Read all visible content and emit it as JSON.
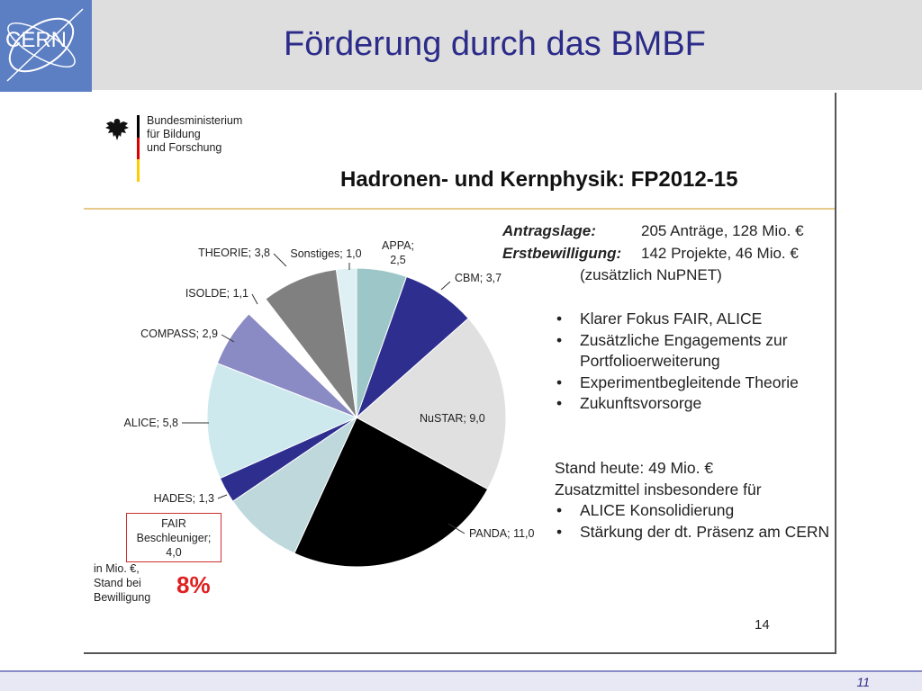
{
  "slide": {
    "title": "Förderung durch das BMBF",
    "page_number": "11"
  },
  "logo": {
    "text": "CERN"
  },
  "ministry": {
    "lines": [
      "Bundesministerium",
      "für Bildung",
      "und Forschung"
    ],
    "flag_colors": [
      "#000000",
      "#dd0000",
      "#ffcc00"
    ]
  },
  "info": {
    "antragslage_label": "Antragslage:",
    "antragslage_value": "205 Anträge, 128 Mio. €",
    "erstbewilligung_label": "Erstbewilligung:",
    "erstbewilligung_value": "142 Projekte, 46 Mio. €",
    "zusatz": "(zusätzlich NuPNET)"
  },
  "bullets": [
    "Klarer Fokus FAIR, ALICE",
    "Zusätzliche Engagements zur Portfolioerweiterung",
    "Experimentbegleitende Theorie",
    "Zukunftsvorsorge"
  ],
  "status": {
    "line1": "Stand heute: 49 Mio. €",
    "line2": "Zusatzmittel insbesondere für",
    "items": [
      "ALICE Konsolidierung",
      "Stärkung der dt. Präsenz am CERN"
    ]
  },
  "footnote": [
    "in Mio. €,",
    "Stand bei",
    "Bewilligung"
  ],
  "highlight_percent": "8%",
  "inner_slide_number": "14",
  "chart_data": {
    "type": "pie",
    "title": "Hadronen- und Kernphysik: FP2012-15",
    "unit": "Mio. €",
    "slices": [
      {
        "label": "APPA; 2,5",
        "value": 2.5,
        "color": "#9dc6c8"
      },
      {
        "label": "CBM; 3,7",
        "value": 3.7,
        "color": "#2e2e8f"
      },
      {
        "label": "NuSTAR; 9,0",
        "value": 9.0,
        "color": "#e0e0e0"
      },
      {
        "label": "PANDA; 11,0",
        "value": 11.0,
        "color": "#000000"
      },
      {
        "label": "FAIR Beschleuniger; 4,0",
        "value": 4.0,
        "color": "#bfd8dc"
      },
      {
        "label": "HADES; 1,3",
        "value": 1.3,
        "color": "#2e2e8f"
      },
      {
        "label": "ALICE; 5,8",
        "value": 5.8,
        "color": "#cde9ee"
      },
      {
        "label": "COMPASS; 2,9",
        "value": 2.9,
        "color": "#8a8ac4"
      },
      {
        "label": "ISOLDE; 1,1",
        "value": 1.1,
        "color": "#ffffff"
      },
      {
        "label": "THEORIE; 3,8",
        "value": 3.8,
        "color": "#808080"
      },
      {
        "label": "Sonstiges; 1,0",
        "value": 1.0,
        "color": "#def0f3"
      }
    ],
    "fair_label_lines": [
      "FAIR",
      "Beschleuniger;",
      "4,0"
    ]
  }
}
